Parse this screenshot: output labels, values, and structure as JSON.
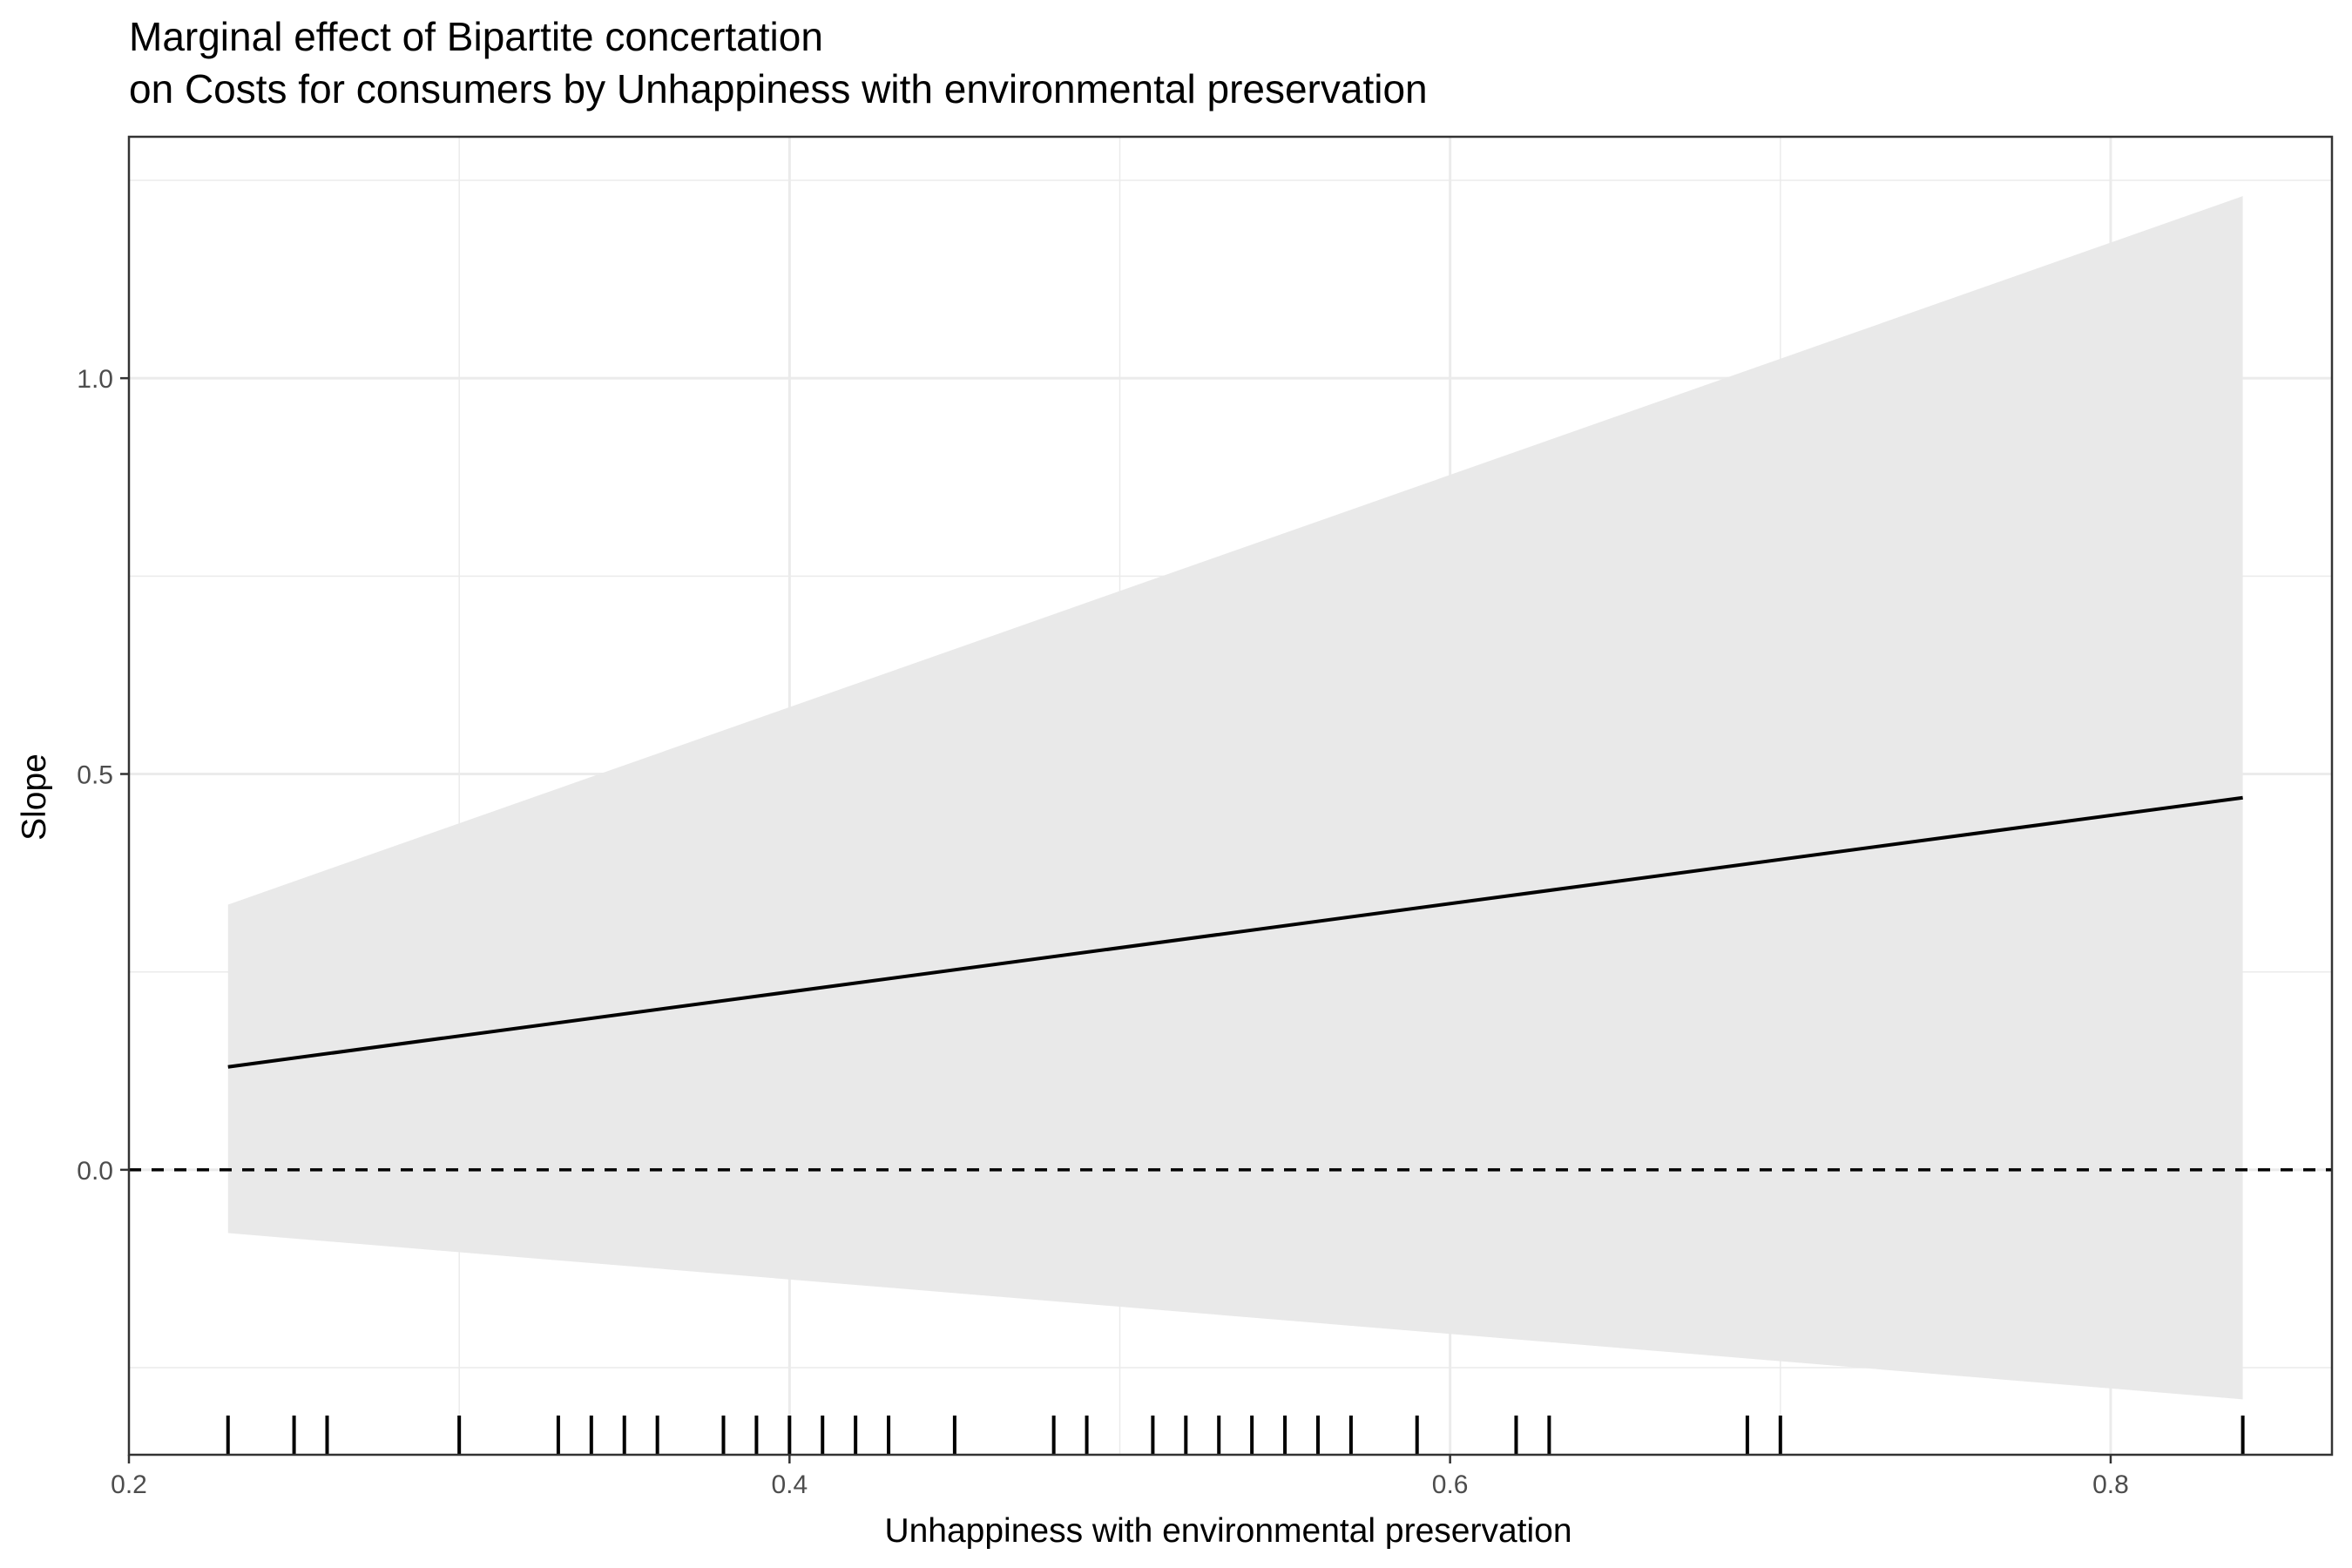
{
  "chart_data": {
    "type": "line",
    "title": "Marginal effect of Bipartite concertation",
    "subtitle": "on Costs for consumers by Unhappiness with environmental preservation",
    "xlabel": "Unhappiness with environmental preservation",
    "ylabel": "Slope",
    "xlim": [
      0.2,
      0.867
    ],
    "ylim": [
      -0.36,
      1.305
    ],
    "x_ticks": [
      0.2,
      0.4,
      0.6,
      0.8
    ],
    "x_tick_labels": [
      "0.2",
      "0.4",
      "0.6",
      "0.8"
    ],
    "y_ticks": [
      0.0,
      0.5,
      1.0
    ],
    "y_tick_labels": [
      "0.0",
      "0.5",
      "1.0"
    ],
    "grid": true,
    "reference_line": {
      "y": 0,
      "style": "dashed"
    },
    "series": [
      {
        "x": [
          0.23,
          0.84
        ],
        "y": [
          0.13,
          0.47
        ]
      }
    ],
    "ribbon": {
      "x": [
        0.23,
        0.84
      ],
      "lower": [
        -0.08,
        -0.29
      ],
      "upper": [
        0.335,
        1.23
      ]
    },
    "rug": [
      0.23,
      0.25,
      0.26,
      0.3,
      0.33,
      0.34,
      0.35,
      0.36,
      0.38,
      0.39,
      0.4,
      0.41,
      0.42,
      0.43,
      0.45,
      0.48,
      0.49,
      0.51,
      0.52,
      0.53,
      0.54,
      0.55,
      0.56,
      0.57,
      0.59,
      0.62,
      0.63,
      0.69,
      0.7,
      0.84
    ],
    "colors": {
      "ribbon": "#e9e9e9",
      "line": "#000000",
      "grid": "#ebebeb",
      "panel_border": "#333333",
      "tick_label": "#4d4d4d"
    }
  }
}
